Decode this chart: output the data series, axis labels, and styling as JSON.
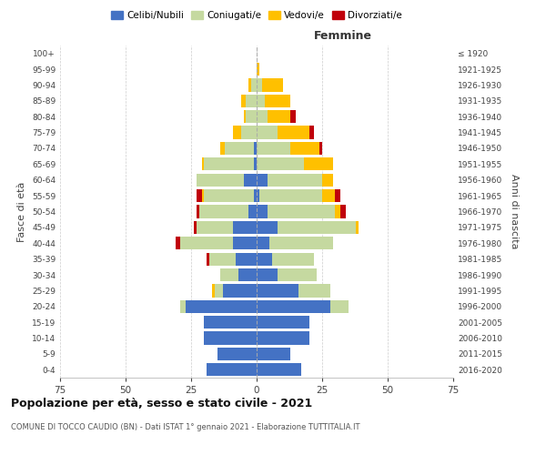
{
  "age_groups": [
    "0-4",
    "5-9",
    "10-14",
    "15-19",
    "20-24",
    "25-29",
    "30-34",
    "35-39",
    "40-44",
    "45-49",
    "50-54",
    "55-59",
    "60-64",
    "65-69",
    "70-74",
    "75-79",
    "80-84",
    "85-89",
    "90-94",
    "95-99",
    "100+"
  ],
  "birth_years": [
    "2016-2020",
    "2011-2015",
    "2006-2010",
    "2001-2005",
    "1996-2000",
    "1991-1995",
    "1986-1990",
    "1981-1985",
    "1976-1980",
    "1971-1975",
    "1966-1970",
    "1961-1965",
    "1956-1960",
    "1951-1955",
    "1946-1950",
    "1941-1945",
    "1936-1940",
    "1931-1935",
    "1926-1930",
    "1921-1925",
    "≤ 1920"
  ],
  "male": {
    "celibi": [
      19,
      15,
      20,
      20,
      27,
      13,
      7,
      8,
      9,
      9,
      3,
      1,
      5,
      1,
      1,
      0,
      0,
      0,
      0,
      0,
      0
    ],
    "coniugati": [
      0,
      0,
      0,
      0,
      2,
      3,
      7,
      10,
      20,
      14,
      19,
      19,
      18,
      19,
      11,
      6,
      4,
      4,
      2,
      0,
      0
    ],
    "vedovi": [
      0,
      0,
      0,
      0,
      0,
      1,
      0,
      0,
      0,
      0,
      0,
      1,
      0,
      1,
      2,
      3,
      1,
      2,
      1,
      0,
      0
    ],
    "divorziati": [
      0,
      0,
      0,
      0,
      0,
      0,
      0,
      1,
      2,
      1,
      1,
      2,
      0,
      0,
      0,
      0,
      0,
      0,
      0,
      0,
      0
    ]
  },
  "female": {
    "nubili": [
      17,
      13,
      20,
      20,
      28,
      16,
      8,
      6,
      5,
      8,
      4,
      1,
      4,
      0,
      0,
      0,
      0,
      0,
      0,
      0,
      0
    ],
    "coniugate": [
      0,
      0,
      0,
      0,
      7,
      12,
      15,
      16,
      24,
      30,
      26,
      24,
      21,
      18,
      13,
      8,
      4,
      3,
      2,
      0,
      0
    ],
    "vedove": [
      0,
      0,
      0,
      0,
      0,
      0,
      0,
      0,
      0,
      1,
      2,
      5,
      4,
      11,
      11,
      12,
      9,
      10,
      8,
      1,
      0
    ],
    "divorziate": [
      0,
      0,
      0,
      0,
      0,
      0,
      0,
      0,
      0,
      0,
      2,
      2,
      0,
      0,
      1,
      2,
      2,
      0,
      0,
      0,
      0
    ]
  },
  "color_celibi": "#4472c4",
  "color_coniugati": "#c5d9a0",
  "color_vedovi": "#ffc000",
  "color_divorziati": "#c0000b",
  "xlim": 75,
  "title": "Popolazione per età, sesso e stato civile - 2021",
  "subtitle": "COMUNE DI TOCCO CAUDIO (BN) - Dati ISTAT 1° gennaio 2021 - Elaborazione TUTTITALIA.IT",
  "ylabel_left": "Fasce di età",
  "ylabel_right": "Anni di nascita",
  "xlabel_right": "Femmine"
}
